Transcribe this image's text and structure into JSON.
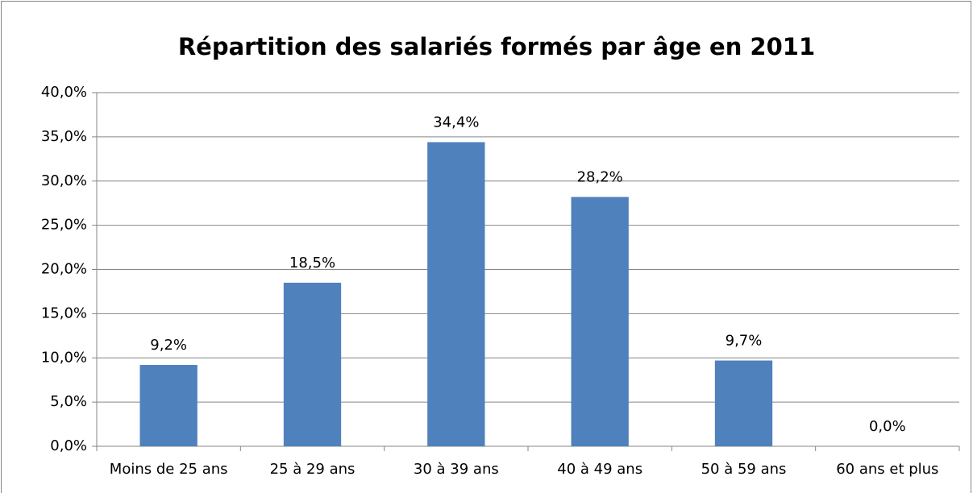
{
  "chart_data": {
    "type": "bar",
    "title": "Répartition des salariés formés par âge en 2011",
    "categories": [
      "Moins de 25 ans",
      "25 à 29 ans",
      "30 à 39 ans",
      "40 à 49 ans",
      "50 à 59 ans",
      "60 ans et plus"
    ],
    "values": [
      9.2,
      18.5,
      34.4,
      28.2,
      9.7,
      0.0
    ],
    "value_labels": [
      "9,2%",
      "18,5%",
      "34,4%",
      "28,2%",
      "9,7%",
      "0,0%"
    ],
    "color": "#4f81bd",
    "ylim": [
      0,
      40
    ],
    "yticks": [
      {
        "value": 0,
        "label": "0,0%"
      },
      {
        "value": 5,
        "label": "5,0%"
      },
      {
        "value": 10,
        "label": "10,0%"
      },
      {
        "value": 15,
        "label": "15,0%"
      },
      {
        "value": 20,
        "label": "20,0%"
      },
      {
        "value": 25,
        "label": "25,0%"
      },
      {
        "value": 30,
        "label": "30,0%"
      },
      {
        "value": 35,
        "label": "35,0%"
      },
      {
        "value": 40,
        "label": "40,0%"
      }
    ],
    "grid": true
  }
}
